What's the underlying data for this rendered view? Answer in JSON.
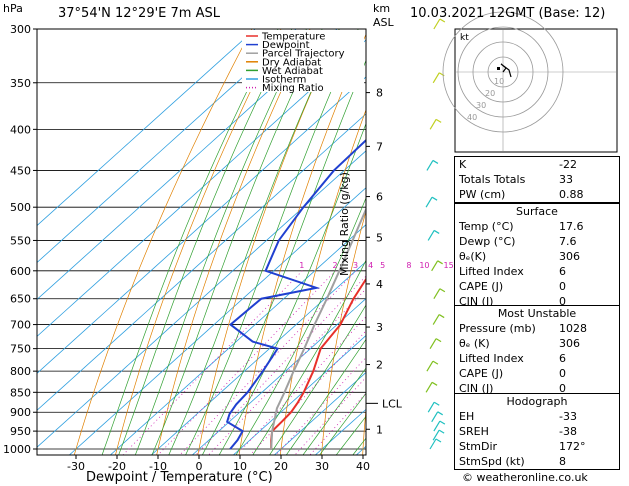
{
  "header": {
    "hpa_label": "hPa",
    "location": "37°54'N 12°29'E 7m ASL",
    "km_label": "km",
    "asl_label": "ASL",
    "datetime": "10.03.2021 12GMT (Base: 12)"
  },
  "legend": [
    {
      "label": "Temperature",
      "color": "#e8302a",
      "style": "solid"
    },
    {
      "label": "Dewpoint",
      "color": "#2040d0",
      "style": "solid"
    },
    {
      "label": "Parcel Trajectory",
      "color": "#a0a0a0",
      "style": "solid"
    },
    {
      "label": "Dry Adiabat",
      "color": "#e08000",
      "style": "solid"
    },
    {
      "label": "Wet Adiabat",
      "color": "#30a030",
      "style": "solid"
    },
    {
      "label": "Isotherm",
      "color": "#30a0e0",
      "style": "solid"
    },
    {
      "label": "Mixing Ratio",
      "color": "#d020b0",
      "style": "dotted"
    }
  ],
  "chart_data": {
    "type": "line",
    "xlabel": "Dewpoint / Temperature (°C)",
    "ylabel_right": "Mixing Ratio (g/kg)",
    "pressure_levels": [
      300,
      350,
      400,
      450,
      500,
      550,
      600,
      650,
      700,
      750,
      800,
      850,
      900,
      950,
      1000
    ],
    "x_ticks": [
      -30,
      -20,
      -10,
      0,
      10,
      20,
      30,
      40
    ],
    "xlim": [
      -40,
      40
    ],
    "ylim": [
      1050,
      300
    ],
    "height_km_labels": [
      {
        "p": 945,
        "label": "1"
      },
      {
        "p": 785,
        "label": "2"
      },
      {
        "p": 705,
        "label": "3"
      },
      {
        "p": 623,
        "label": "4"
      },
      {
        "p": 545,
        "label": "5"
      },
      {
        "p": 485,
        "label": "6"
      },
      {
        "p": 420,
        "label": "7"
      },
      {
        "p": 360,
        "label": "8"
      }
    ],
    "lcl": {
      "p": 890,
      "label": "LCL"
    },
    "mixing_ratio_labels": [
      "1",
      "2",
      "3",
      "4",
      "5",
      "8",
      "10",
      "15",
      "20",
      "25"
    ],
    "series": [
      {
        "name": "Temperature",
        "color": "#e8302a",
        "points": [
          [
            1000,
            17.6
          ],
          [
            975,
            15.2
          ],
          [
            950,
            13.0
          ],
          [
            925,
            12.8
          ],
          [
            900,
            12.5
          ],
          [
            875,
            11.5
          ],
          [
            850,
            10.2
          ],
          [
            800,
            6.8
          ],
          [
            750,
            2.5
          ],
          [
            700,
            0.8
          ],
          [
            650,
            -3.0
          ],
          [
            600,
            -6.2
          ],
          [
            550,
            -10.5
          ],
          [
            500,
            -15.5
          ],
          [
            450,
            -21.0
          ],
          [
            400,
            -27.0
          ],
          [
            350,
            -34.5
          ],
          [
            300,
            -43.0
          ]
        ]
      },
      {
        "name": "Dewpoint",
        "color": "#2040d0",
        "points": [
          [
            1000,
            7.6
          ],
          [
            975,
            7.0
          ],
          [
            950,
            5.8
          ],
          [
            925,
            -0.5
          ],
          [
            905,
            -2.0
          ],
          [
            880,
            -3.0
          ],
          [
            850,
            -3.5
          ],
          [
            800,
            -5.5
          ],
          [
            750,
            -8.0
          ],
          [
            735,
            -16.0
          ],
          [
            700,
            -26.0
          ],
          [
            650,
            -25.5
          ],
          [
            630,
            -15.0
          ],
          [
            600,
            -32.0
          ],
          [
            550,
            -37.0
          ],
          [
            500,
            -40.0
          ],
          [
            450,
            -42.5
          ],
          [
            400,
            -43.0
          ],
          [
            390,
            -40.0
          ],
          [
            350,
            -42.0
          ],
          [
            300,
            -55.0
          ]
        ]
      },
      {
        "name": "Parcel Trajectory",
        "color": "#a0a0a0",
        "points": [
          [
            1000,
            17.6
          ],
          [
            950,
            13.0
          ],
          [
            890,
            8.0
          ],
          [
            850,
            5.5
          ],
          [
            800,
            2.0
          ],
          [
            750,
            -1.5
          ],
          [
            700,
            -5.5
          ],
          [
            650,
            -9.5
          ],
          [
            600,
            -14.0
          ],
          [
            550,
            -19.0
          ],
          [
            500,
            -24.5
          ],
          [
            450,
            -31.0
          ],
          [
            400,
            -38.0
          ],
          [
            350,
            -46.0
          ],
          [
            300,
            -55.0
          ]
        ]
      }
    ]
  },
  "hodograph": {
    "unit_label": "kt",
    "ring_labels": [
      "10",
      "20",
      "30",
      "40"
    ]
  },
  "indices": [
    {
      "label": "K",
      "value": "-22"
    },
    {
      "label": "Totals Totals",
      "value": "33"
    },
    {
      "label": "PW (cm)",
      "value": "0.88"
    }
  ],
  "surface": {
    "title": "Surface",
    "rows": [
      {
        "label": "Temp (°C)",
        "value": "17.6"
      },
      {
        "label": "Dewp (°C)",
        "value": "7.6"
      },
      {
        "label": "θₑ(K)",
        "value": "306"
      },
      {
        "label": "Lifted Index",
        "value": "6"
      },
      {
        "label": "CAPE (J)",
        "value": "0"
      },
      {
        "label": "CIN (J)",
        "value": "0"
      }
    ]
  },
  "most_unstable": {
    "title": "Most Unstable",
    "rows": [
      {
        "label": "Pressure (mb)",
        "value": "1028"
      },
      {
        "label": "θₑ (K)",
        "value": "306"
      },
      {
        "label": "Lifted Index",
        "value": "6"
      },
      {
        "label": "CAPE (J)",
        "value": "0"
      },
      {
        "label": "CIN (J)",
        "value": "0"
      }
    ]
  },
  "hodograph_table": {
    "title": "Hodograph",
    "rows": [
      {
        "label": "EH",
        "value": "-33"
      },
      {
        "label": "SREH",
        "value": "-38"
      },
      {
        "label": "StmDir",
        "value": "172°"
      },
      {
        "label": "StmSpd (kt)",
        "value": "8"
      }
    ]
  },
  "footer": {
    "copyright": "© weatheronline.co.uk"
  }
}
